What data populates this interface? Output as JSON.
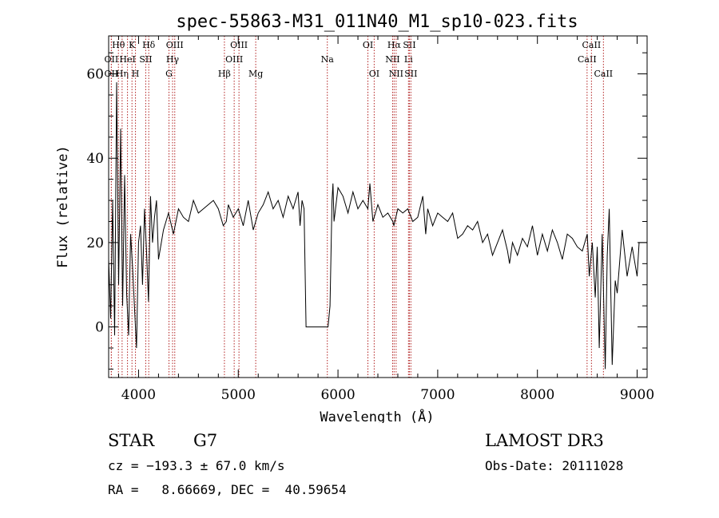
{
  "chart_data": {
    "type": "line",
    "title": "spec-55863-M31_011N40_M1_sp10-023.fits",
    "xlabel": "Wavelength (Å)",
    "ylabel": "Flux (relative)",
    "xlim": [
      3700,
      9100
    ],
    "ylim": [
      -12,
      69
    ],
    "xticks": [
      4000,
      5000,
      6000,
      7000,
      8000,
      9000
    ],
    "yticks": [
      0,
      20,
      40,
      60
    ],
    "series": [
      {
        "name": "flux",
        "x": [
          3700,
          3720,
          3740,
          3760,
          3780,
          3800,
          3820,
          3840,
          3860,
          3880,
          3900,
          3920,
          3940,
          3960,
          3980,
          4000,
          4020,
          4040,
          4060,
          4080,
          4100,
          4120,
          4140,
          4160,
          4180,
          4200,
          4250,
          4300,
          4350,
          4400,
          4450,
          4500,
          4550,
          4600,
          4650,
          4700,
          4750,
          4800,
          4850,
          4880,
          4900,
          4950,
          5000,
          5050,
          5100,
          5150,
          5200,
          5250,
          5300,
          5350,
          5400,
          5450,
          5500,
          5550,
          5600,
          5620,
          5640,
          5660,
          5680,
          5700,
          5750,
          5800,
          5850,
          5900,
          5920,
          5940,
          5950,
          5960,
          6000,
          6050,
          6100,
          6150,
          6200,
          6250,
          6300,
          6320,
          6350,
          6400,
          6450,
          6500,
          6550,
          6560,
          6600,
          6650,
          6700,
          6750,
          6800,
          6850,
          6880,
          6900,
          6950,
          7000,
          7050,
          7100,
          7150,
          7200,
          7250,
          7300,
          7350,
          7400,
          7450,
          7500,
          7550,
          7600,
          7650,
          7700,
          7720,
          7750,
          7800,
          7850,
          7900,
          7950,
          8000,
          8050,
          8100,
          8150,
          8200,
          8250,
          8300,
          8350,
          8400,
          8450,
          8500,
          8520,
          8550,
          8580,
          8600,
          8620,
          8650,
          8680,
          8700,
          8720,
          8750,
          8780,
          8800,
          8850,
          8900,
          8950,
          9000,
          9020,
          9050,
          9100
        ],
        "y": [
          16,
          2,
          30,
          -2,
          58,
          10,
          47,
          5,
          36,
          8,
          -2,
          22,
          14,
          4,
          -5,
          20,
          24,
          10,
          28,
          18,
          6,
          31,
          20,
          26,
          30,
          16,
          23,
          27,
          22,
          28,
          26,
          25,
          30,
          27,
          28,
          29,
          30,
          28,
          24,
          25,
          29,
          26,
          28,
          24,
          30,
          23,
          27,
          29,
          32,
          28,
          30,
          26,
          31,
          28,
          32,
          24,
          30,
          28,
          0,
          0,
          0,
          0,
          0,
          0,
          5,
          30,
          34,
          25,
          33,
          31,
          27,
          32,
          28,
          30,
          28,
          34,
          25,
          29,
          26,
          27,
          25,
          24,
          28,
          27,
          28,
          25,
          26,
          31,
          22,
          28,
          24,
          27,
          26,
          25,
          27,
          21,
          22,
          24,
          23,
          25,
          20,
          22,
          17,
          20,
          23,
          18,
          15,
          20,
          17,
          21,
          19,
          24,
          17,
          22,
          18,
          23,
          20,
          16,
          22,
          21,
          19,
          18,
          22,
          12,
          20,
          7,
          19,
          -5,
          22,
          -10,
          17,
          28,
          -9,
          11,
          8,
          23,
          12,
          19,
          12,
          20,
          20,
          20
        ]
      }
    ],
    "line_markers": [
      {
        "label": "OII",
        "wl": 3727,
        "row": 2
      },
      {
        "label": "OII",
        "wl": 3727,
        "row": 1
      },
      {
        "label": "Hθ",
        "wl": 3798,
        "row": 0
      },
      {
        "label": "Hη",
        "wl": 3835,
        "row": 2
      },
      {
        "label": "HeI",
        "wl": 3889,
        "row": 1
      },
      {
        "label": "K",
        "wl": 3934,
        "row": 0
      },
      {
        "label": "H",
        "wl": 3969,
        "row": 2
      },
      {
        "label": "SII",
        "wl": 4072,
        "row": 1
      },
      {
        "label": "Hδ",
        "wl": 4102,
        "row": 0
      },
      {
        "label": "G",
        "wl": 4305,
        "row": 2
      },
      {
        "label": "Hγ",
        "wl": 4341,
        "row": 1
      },
      {
        "label": "OIII",
        "wl": 4363,
        "row": 0
      },
      {
        "label": "Hβ",
        "wl": 4861,
        "row": 2
      },
      {
        "label": "OIII",
        "wl": 4959,
        "row": 1
      },
      {
        "label": "OIII",
        "wl": 5007,
        "row": 0
      },
      {
        "label": "Mg",
        "wl": 5175,
        "row": 2
      },
      {
        "label": "Na",
        "wl": 5893,
        "row": 1
      },
      {
        "label": "OI",
        "wl": 6300,
        "row": 0
      },
      {
        "label": "OI",
        "wl": 6363,
        "row": 2
      },
      {
        "label": "NII",
        "wl": 6548,
        "row": 1
      },
      {
        "label": "Hα",
        "wl": 6563,
        "row": 0
      },
      {
        "label": "NII",
        "wl": 6583,
        "row": 2
      },
      {
        "label": "Li",
        "wl": 6707,
        "row": 1
      },
      {
        "label": "SII",
        "wl": 6716,
        "row": 0
      },
      {
        "label": "SII",
        "wl": 6731,
        "row": 2
      },
      {
        "label": "CaII",
        "wl": 8498,
        "row": 1
      },
      {
        "label": "CaII",
        "wl": 8542,
        "row": 0
      },
      {
        "label": "CaII",
        "wl": 8662,
        "row": 2
      }
    ]
  },
  "footer": {
    "class_label": "STAR",
    "subclass": "G7",
    "survey": "LAMOST DR3",
    "redshift": "cz = −193.3 ± 67.0 km/s",
    "obs_date": "Obs-Date: 20111028",
    "coords": "RA =   8.66669, DEC =  40.59654"
  },
  "colors": {
    "spectrum": "#000000",
    "marker_line": "#b22222",
    "axes": "#000000",
    "background": "#ffffff"
  }
}
